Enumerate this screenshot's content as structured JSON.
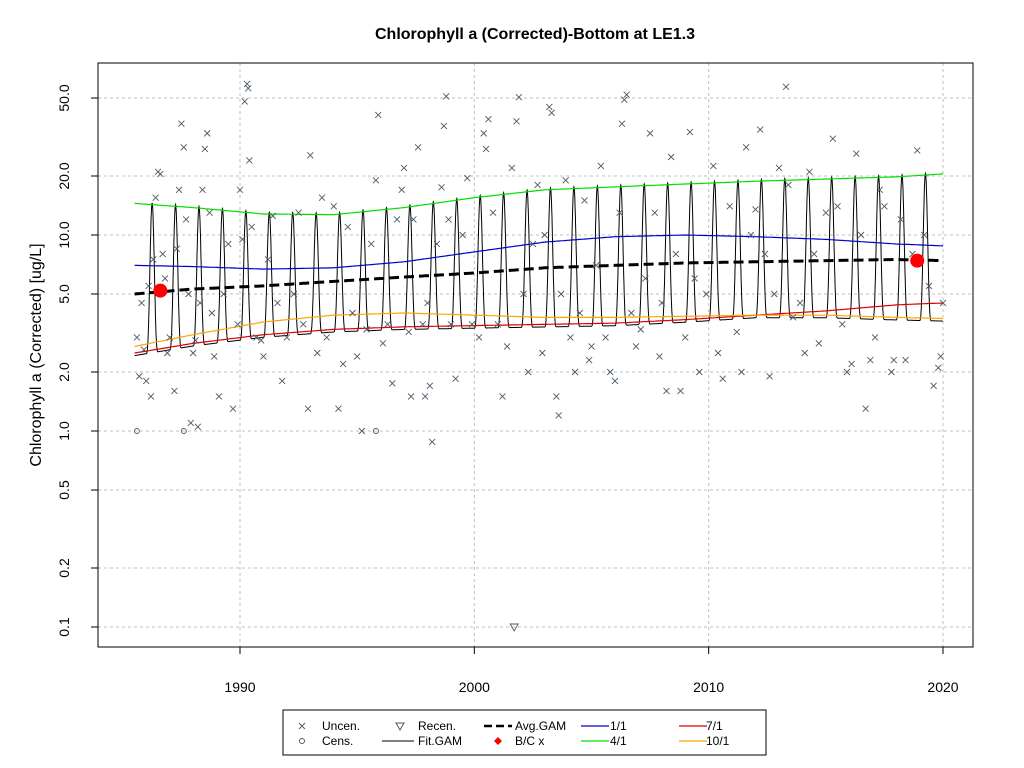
{
  "chart_data": {
    "type": "line",
    "title": "Chlorophyll a (Corrected)-Bottom at LE1.3",
    "xlabel": "",
    "ylabel": "Chlorophyll a (Corrected) [ug/L]",
    "xlim": [
      1984.5,
      2021.3
    ],
    "ylim": [
      0.08,
      80
    ],
    "yscale": "log",
    "grid": true,
    "x_ticks": [
      1990,
      2000,
      2010,
      2020
    ],
    "x_tick_labels": [
      "1990",
      "2000",
      "2010",
      "2020"
    ],
    "y_ticks": [
      0.1,
      0.2,
      0.5,
      1.0,
      2.0,
      5.0,
      10.0,
      20.0,
      50.0
    ],
    "y_tick_labels": [
      "0.1",
      "0.2",
      "0.5",
      "1.0",
      "2.0",
      "5.0",
      "10.0",
      "20.0",
      "50.0"
    ],
    "legend": {
      "placement": "bottom",
      "entries": [
        "Uncen.",
        "Cens.",
        "Recen.",
        "Fit.GAM",
        "Avg.GAM",
        "B/C x",
        "1/1",
        "4/1",
        "7/1",
        "10/1"
      ]
    },
    "colors": {
      "uncensored": "#4a5a6a",
      "fit_gam": "#000000",
      "avg_gam": "#000000",
      "bc_points": "#ff0000",
      "jan1": "#0000cc",
      "apr1": "#00dd00",
      "jul1": "#dd0000",
      "oct1": "#ffa500",
      "grid": "#bfbfbf"
    },
    "series": [
      {
        "name": "Avg.GAM",
        "x": [
          1985.5,
          1988,
          1991,
          1994,
          1997,
          2000,
          2003,
          2006,
          2009,
          2012,
          2015,
          2018,
          2020
        ],
        "y": [
          5.0,
          5.3,
          5.5,
          5.8,
          6.1,
          6.4,
          6.8,
          7.0,
          7.2,
          7.3,
          7.4,
          7.5,
          7.4
        ]
      },
      {
        "name": "1/1",
        "x": [
          1985.5,
          1988,
          1991,
          1994,
          1997,
          2000,
          2003,
          2006,
          2009,
          2012,
          2015,
          2018,
          2020
        ],
        "y": [
          7.0,
          6.9,
          6.7,
          6.8,
          7.3,
          8.2,
          9.2,
          9.8,
          10.0,
          9.8,
          9.5,
          9.0,
          8.8
        ]
      },
      {
        "name": "4/1",
        "x": [
          1985.5,
          1988,
          1991,
          1994,
          1997,
          2000,
          2003,
          2006,
          2009,
          2012,
          2015,
          2018,
          2020
        ],
        "y": [
          14.5,
          13.8,
          12.8,
          12.7,
          13.8,
          15.5,
          17.0,
          17.6,
          18.2,
          18.8,
          19.3,
          19.8,
          20.5
        ]
      },
      {
        "name": "7/1",
        "x": [
          1985.5,
          1988,
          1991,
          1994,
          1997,
          2000,
          2003,
          2006,
          2009,
          2012,
          2015,
          2018,
          2020
        ],
        "y": [
          2.5,
          2.8,
          3.1,
          3.3,
          3.4,
          3.45,
          3.5,
          3.55,
          3.7,
          3.9,
          4.1,
          4.4,
          4.5
        ]
      },
      {
        "name": "10/1",
        "x": [
          1985.5,
          1988,
          1991,
          1994,
          1997,
          2000,
          2003,
          2006,
          2009,
          2012,
          2015,
          2018,
          2020
        ],
        "y": [
          2.7,
          3.1,
          3.6,
          3.9,
          4.0,
          3.9,
          3.8,
          3.8,
          3.85,
          3.9,
          3.9,
          3.8,
          3.75
        ]
      },
      {
        "name": "Fit.GAM",
        "fit_description_points": {
          "x_start": 1985.5,
          "x_end": 2020,
          "peak_month_fraction": 0.25
        }
      }
    ],
    "bc_points": [
      {
        "x": 1986.6,
        "y": 5.2
      },
      {
        "x": 2018.9,
        "y": 7.4
      }
    ],
    "uncensored": [
      [
        1985.6,
        3.0
      ],
      [
        1985.7,
        1.9
      ],
      [
        1985.8,
        4.5
      ],
      [
        1985.9,
        2.6
      ],
      [
        1986.0,
        1.8
      ],
      [
        1986.1,
        5.5
      ],
      [
        1986.2,
        1.5
      ],
      [
        1986.3,
        7.5
      ],
      [
        1986.4,
        15.5
      ],
      [
        1986.5,
        21.0
      ],
      [
        1986.6,
        20.5
      ],
      [
        1986.7,
        8.0
      ],
      [
        1986.8,
        6.0
      ],
      [
        1986.9,
        2.5
      ],
      [
        1987.0,
        3.0
      ],
      [
        1987.2,
        1.6
      ],
      [
        1987.3,
        8.5
      ],
      [
        1987.4,
        17.0
      ],
      [
        1987.5,
        37.0
      ],
      [
        1987.6,
        28.0
      ],
      [
        1987.7,
        12.0
      ],
      [
        1987.8,
        5.0
      ],
      [
        1987.9,
        1.1
      ],
      [
        1988.0,
        2.5
      ],
      [
        1988.1,
        2.9
      ],
      [
        1988.2,
        1.05
      ],
      [
        1988.3,
        4.5
      ],
      [
        1988.4,
        17.0
      ],
      [
        1988.5,
        27.5
      ],
      [
        1988.6,
        33.0
      ],
      [
        1988.7,
        13.0
      ],
      [
        1988.8,
        4.0
      ],
      [
        1988.9,
        2.4
      ],
      [
        1989.1,
        1.5
      ],
      [
        1989.3,
        5.0
      ],
      [
        1989.5,
        9.0
      ],
      [
        1989.7,
        1.3
      ],
      [
        1989.9,
        3.5
      ],
      [
        1990.0,
        17.0
      ],
      [
        1990.1,
        9.5
      ],
      [
        1990.2,
        48.0
      ],
      [
        1990.3,
        59.0
      ],
      [
        1990.35,
        56.0
      ],
      [
        1990.4,
        24.0
      ],
      [
        1990.5,
        11.0
      ],
      [
        1990.7,
        3.0
      ],
      [
        1990.9,
        2.9
      ],
      [
        1991.0,
        2.4
      ],
      [
        1991.2,
        7.5
      ],
      [
        1991.4,
        12.5
      ],
      [
        1991.6,
        4.5
      ],
      [
        1991.8,
        1.8
      ],
      [
        1992.0,
        3.0
      ],
      [
        1992.3,
        5.0
      ],
      [
        1992.5,
        13.0
      ],
      [
        1992.7,
        3.5
      ],
      [
        1992.9,
        1.3
      ],
      [
        1993.0,
        25.5
      ],
      [
        1993.3,
        2.5
      ],
      [
        1993.5,
        15.5
      ],
      [
        1993.7,
        3.0
      ],
      [
        1994.0,
        14.0
      ],
      [
        1994.2,
        1.3
      ],
      [
        1994.4,
        2.2
      ],
      [
        1994.6,
        11.0
      ],
      [
        1994.8,
        4.0
      ],
      [
        1995.0,
        2.4
      ],
      [
        1995.2,
        1.0
      ],
      [
        1995.4,
        3.3
      ],
      [
        1995.6,
        9.0
      ],
      [
        1995.8,
        19.0
      ],
      [
        1995.9,
        41.0
      ],
      [
        1996.1,
        2.8
      ],
      [
        1996.3,
        3.5
      ],
      [
        1996.5,
        1.75
      ],
      [
        1996.7,
        12.0
      ],
      [
        1996.9,
        17.0
      ],
      [
        1997.0,
        22.0
      ],
      [
        1997.2,
        3.2
      ],
      [
        1997.3,
        1.5
      ],
      [
        1997.4,
        12.0
      ],
      [
        1997.6,
        28.0
      ],
      [
        1997.8,
        3.5
      ],
      [
        1997.9,
        1.5
      ],
      [
        1998.0,
        4.5
      ],
      [
        1998.1,
        1.7
      ],
      [
        1998.2,
        0.88
      ],
      [
        1998.4,
        9.0
      ],
      [
        1998.6,
        17.5
      ],
      [
        1998.7,
        36.0
      ],
      [
        1998.8,
        51.0
      ],
      [
        1998.9,
        12.0
      ],
      [
        1999.0,
        3.5
      ],
      [
        1999.2,
        1.85
      ],
      [
        1999.5,
        10.0
      ],
      [
        1999.7,
        19.5
      ],
      [
        1999.9,
        3.5
      ],
      [
        2000.2,
        3.0
      ],
      [
        2000.4,
        33.0
      ],
      [
        2000.5,
        27.5
      ],
      [
        2000.6,
        39.0
      ],
      [
        2000.8,
        13.0
      ],
      [
        2001.0,
        3.5
      ],
      [
        2001.2,
        1.5
      ],
      [
        2001.4,
        2.7
      ],
      [
        2001.6,
        22.0
      ],
      [
        2001.8,
        38.0
      ],
      [
        2001.9,
        50.5
      ],
      [
        2002.1,
        5.0
      ],
      [
        2002.3,
        2.0
      ],
      [
        2002.5,
        9.0
      ],
      [
        2002.7,
        18.0
      ],
      [
        2002.9,
        2.5
      ],
      [
        2003.0,
        10.0
      ],
      [
        2003.2,
        45.0
      ],
      [
        2003.3,
        42.0
      ],
      [
        2003.5,
        1.5
      ],
      [
        2003.6,
        1.2
      ],
      [
        2003.7,
        5.0
      ],
      [
        2003.9,
        19.0
      ],
      [
        2004.1,
        3.0
      ],
      [
        2004.3,
        2.0
      ],
      [
        2004.5,
        4.0
      ],
      [
        2004.7,
        15.0
      ],
      [
        2004.9,
        2.3
      ],
      [
        2005.0,
        2.7
      ],
      [
        2005.2,
        7.0
      ],
      [
        2005.4,
        22.5
      ],
      [
        2005.6,
        3.0
      ],
      [
        2005.8,
        2.0
      ],
      [
        2006.0,
        1.8
      ],
      [
        2006.2,
        13.0
      ],
      [
        2006.3,
        37.0
      ],
      [
        2006.4,
        49.0
      ],
      [
        2006.5,
        52.0
      ],
      [
        2006.7,
        4.0
      ],
      [
        2006.9,
        2.7
      ],
      [
        2007.1,
        3.3
      ],
      [
        2007.3,
        6.0
      ],
      [
        2007.5,
        33.0
      ],
      [
        2007.7,
        13.0
      ],
      [
        2007.9,
        2.4
      ],
      [
        2008.0,
        4.5
      ],
      [
        2008.2,
        1.6
      ],
      [
        2008.4,
        25.0
      ],
      [
        2008.6,
        8.0
      ],
      [
        2008.8,
        1.6
      ],
      [
        2009.0,
        3.0
      ],
      [
        2009.2,
        33.5
      ],
      [
        2009.4,
        6.0
      ],
      [
        2009.6,
        2.0
      ],
      [
        2009.9,
        5.0
      ],
      [
        2010.2,
        22.5
      ],
      [
        2010.4,
        2.5
      ],
      [
        2010.6,
        1.85
      ],
      [
        2010.9,
        14.0
      ],
      [
        2011.2,
        3.2
      ],
      [
        2011.4,
        2.0
      ],
      [
        2011.6,
        28.0
      ],
      [
        2011.8,
        10.0
      ],
      [
        2012.0,
        13.5
      ],
      [
        2012.2,
        34.5
      ],
      [
        2012.4,
        8.0
      ],
      [
        2012.6,
        1.9
      ],
      [
        2012.8,
        5.0
      ],
      [
        2013.0,
        22.0
      ],
      [
        2013.3,
        57.0
      ],
      [
        2013.4,
        18.0
      ],
      [
        2013.6,
        3.8
      ],
      [
        2013.9,
        4.5
      ],
      [
        2014.1,
        2.5
      ],
      [
        2014.3,
        21.0
      ],
      [
        2014.5,
        8.0
      ],
      [
        2014.7,
        2.8
      ],
      [
        2015.0,
        13.0
      ],
      [
        2015.3,
        31.0
      ],
      [
        2015.5,
        14.0
      ],
      [
        2015.7,
        3.5
      ],
      [
        2015.9,
        2.0
      ],
      [
        2016.1,
        2.2
      ],
      [
        2016.3,
        26.0
      ],
      [
        2016.5,
        10.0
      ],
      [
        2016.7,
        1.3
      ],
      [
        2016.9,
        2.3
      ],
      [
        2017.1,
        3.0
      ],
      [
        2017.3,
        17.0
      ],
      [
        2017.5,
        14.0
      ],
      [
        2017.8,
        2.0
      ],
      [
        2017.9,
        2.3
      ],
      [
        2018.2,
        12.0
      ],
      [
        2018.4,
        2.3
      ],
      [
        2018.7,
        8.0
      ],
      [
        2018.9,
        27.0
      ],
      [
        2019.2,
        10.0
      ],
      [
        2019.4,
        5.5
      ],
      [
        2019.6,
        1.7
      ],
      [
        2019.8,
        2.1
      ],
      [
        2019.9,
        2.4
      ],
      [
        2020.0,
        4.5
      ]
    ],
    "censored": [
      [
        1985.6,
        1.0
      ],
      [
        1987.6,
        1.0
      ],
      [
        1995.8,
        1.0
      ]
    ],
    "recensored": [
      [
        2001.7,
        0.1
      ]
    ]
  }
}
